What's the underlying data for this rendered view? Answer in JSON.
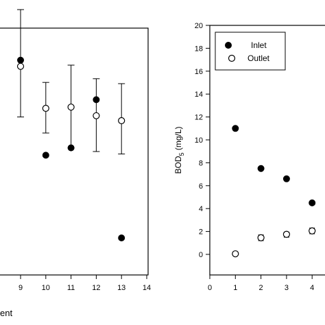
{
  "chart_data": [
    {
      "type": "scatter",
      "panel": "left",
      "xlabel_visible_fragment": "ent",
      "xlim": [
        8,
        14
      ],
      "ylim": [
        0,
        20
      ],
      "x_ticks": [
        "9",
        "10",
        "11",
        "12",
        "13",
        "14"
      ],
      "series": [
        {
          "marker": "filled",
          "points": [
            {
              "x": 9,
              "y": 17.4
            },
            {
              "x": 10,
              "y": 9.7
            },
            {
              "x": 11,
              "y": 10.3
            },
            {
              "x": 12,
              "y": 14.2
            },
            {
              "x": 13,
              "y": 3.0
            }
          ]
        },
        {
          "marker": "open",
          "points": [
            {
              "x": 9,
              "y": 16.9,
              "err_low": 12.8,
              "err_high": 21.5
            },
            {
              "x": 10,
              "y": 13.5,
              "err_low": 11.5,
              "err_high": 15.6
            },
            {
              "x": 11,
              "y": 13.6,
              "err_low": 10.3,
              "err_high": 17.0
            },
            {
              "x": 12,
              "y": 12.9,
              "err_low": 10.0,
              "err_high": 15.9
            },
            {
              "x": 13,
              "y": 12.5,
              "err_low": 9.8,
              "err_high": 15.5
            }
          ]
        }
      ]
    },
    {
      "type": "scatter",
      "panel": "right",
      "ylabel": "BOD",
      "ylabel_subscript": "5",
      "ylabel_unit": " (mg/L)",
      "xlim": [
        0,
        5
      ],
      "ylim": [
        -2,
        20
      ],
      "x_ticks": [
        "0",
        "1",
        "2",
        "3",
        "4"
      ],
      "y_ticks": [
        "0",
        "2",
        "4",
        "6",
        "8",
        "10",
        "12",
        "14",
        "16",
        "18",
        "20"
      ],
      "legend": {
        "position": "top-left",
        "entries": [
          "Inlet",
          "Outlet"
        ]
      },
      "series": [
        {
          "name": "Inlet",
          "marker": "filled",
          "points": [
            {
              "x": 1,
              "y": 11.0
            },
            {
              "x": 2,
              "y": 7.5
            },
            {
              "x": 3,
              "y": 6.6
            },
            {
              "x": 4,
              "y": 4.5
            }
          ]
        },
        {
          "name": "Outlet",
          "marker": "open",
          "points": [
            {
              "x": 1,
              "y": 0.05,
              "err_low": 0.05,
              "err_high": 0.05
            },
            {
              "x": 2,
              "y": 1.45,
              "err_low": 1.2,
              "err_high": 1.7
            },
            {
              "x": 3,
              "y": 1.75,
              "err_low": 1.5,
              "err_high": 1.95
            },
            {
              "x": 4,
              "y": 2.05,
              "err_low": 1.8,
              "err_high": 2.3
            }
          ]
        }
      ]
    }
  ]
}
